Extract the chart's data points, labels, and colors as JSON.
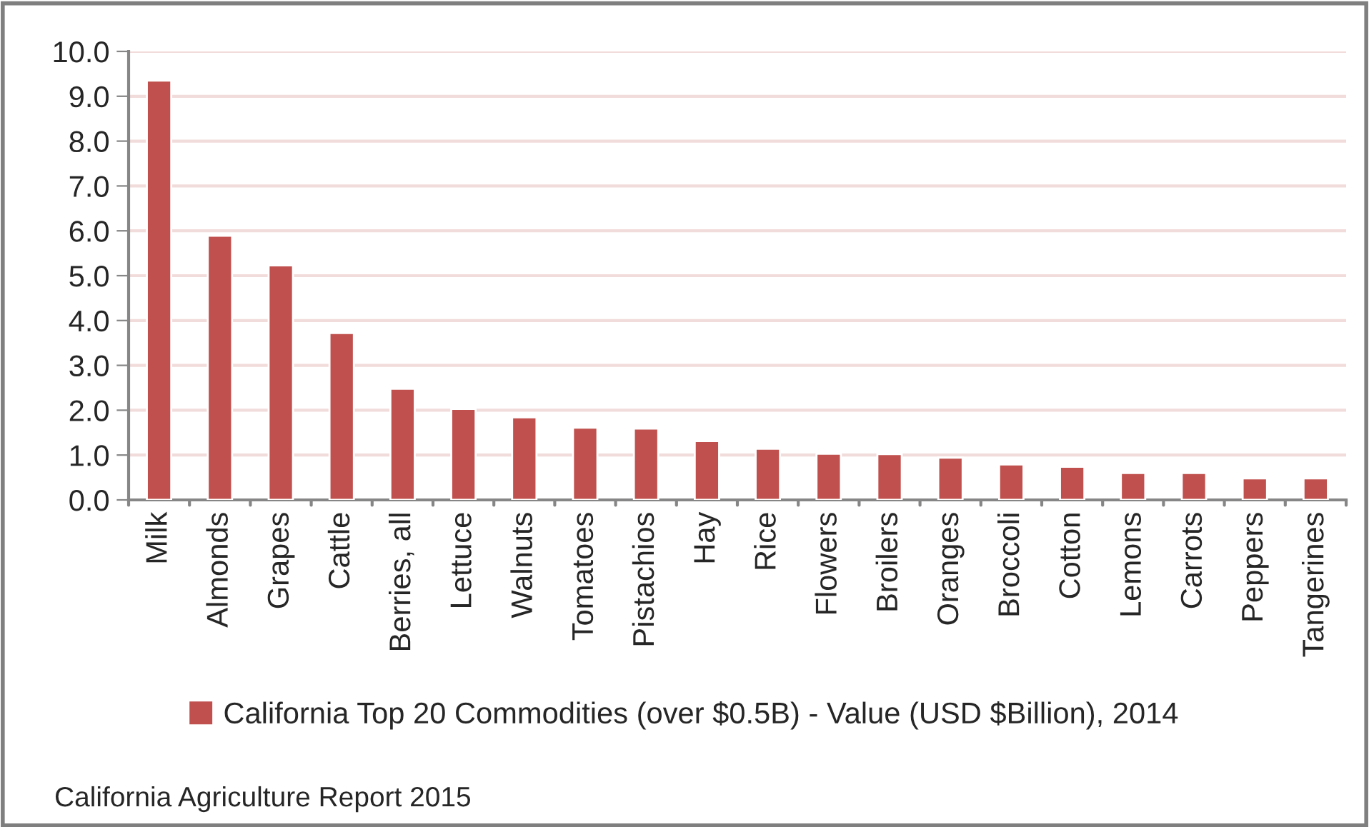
{
  "chart_data": {
    "type": "bar",
    "categories": [
      "Milk",
      "Almonds",
      "Grapes",
      "Cattle",
      "Berries, all",
      "Lettuce",
      "Walnuts",
      "Tomatoes",
      "Pistachios",
      "Hay",
      "Rice",
      "Flowers",
      "Broilers",
      "Oranges",
      "Broccoli",
      "Cotton",
      "Lemons",
      "Carrots",
      "Peppers",
      "Tangerines"
    ],
    "series": [
      {
        "name": "California Top 20 Commodities (over $0.5B) - Value (USD $Billion), 2014",
        "color": "#c0504d",
        "values": [
          9.35,
          5.89,
          5.23,
          3.72,
          2.48,
          2.03,
          1.84,
          1.61,
          1.59,
          1.31,
          1.14,
          1.03,
          1.02,
          0.94,
          0.79,
          0.74,
          0.6,
          0.6,
          0.48,
          0.48
        ]
      }
    ],
    "ylim": [
      0,
      10
    ],
    "yticks": [
      {
        "value": 0,
        "label": "0.0"
      },
      {
        "value": 1,
        "label": "1.0"
      },
      {
        "value": 2,
        "label": "2.0"
      },
      {
        "value": 3,
        "label": "3.0"
      },
      {
        "value": 4,
        "label": "4.0"
      },
      {
        "value": 5,
        "label": "5.0"
      },
      {
        "value": 6,
        "label": "6.0"
      },
      {
        "value": 7,
        "label": "7.0"
      },
      {
        "value": 8,
        "label": "8.0"
      },
      {
        "value": 9,
        "label": "9.0"
      },
      {
        "value": 10,
        "label": "10.0"
      }
    ],
    "grid": "y",
    "legend": "bottom",
    "annotations": [
      "California Agriculture Report 2015"
    ]
  }
}
